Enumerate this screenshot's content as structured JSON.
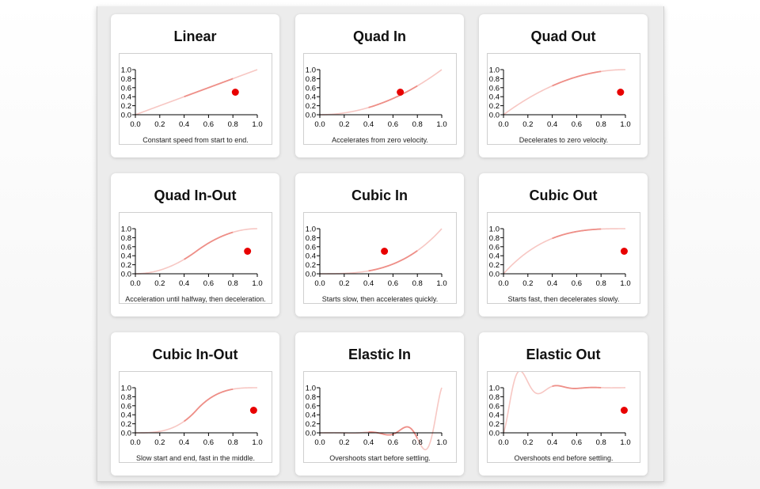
{
  "cards": [
    {
      "title": "Linear",
      "desc": "Constant speed from start to end.",
      "easing": "linear",
      "dot_t": 0.82
    },
    {
      "title": "Quad In",
      "desc": "Accelerates from zero velocity.",
      "easing": "quadIn",
      "dot_t": 0.66
    },
    {
      "title": "Quad Out",
      "desc": "Decelerates to zero velocity.",
      "easing": "quadOut",
      "dot_t": 0.96
    },
    {
      "title": "Quad In-Out",
      "desc": "Acceleration until halfway, then deceleration.",
      "easing": "quadInOut",
      "dot_t": 0.92
    },
    {
      "title": "Cubic In",
      "desc": "Starts slow, then accelerates quickly.",
      "easing": "cubicIn",
      "dot_t": 0.53
    },
    {
      "title": "Cubic Out",
      "desc": "Starts fast, then decelerates slowly.",
      "easing": "cubicOut",
      "dot_t": 0.99
    },
    {
      "title": "Cubic In-Out",
      "desc": "Slow start and end, fast in the middle.",
      "easing": "cubicInOut",
      "dot_t": 0.97
    },
    {
      "title": "Elastic In",
      "desc": "Overshoots start before settling.",
      "easing": "elasticIn",
      "dot_t": null
    },
    {
      "title": "Elastic Out",
      "desc": "Overshoots end before settling.",
      "easing": "elasticOut",
      "dot_t": 0.99
    }
  ],
  "axis": {
    "x_ticks": [
      "0.0",
      "0.2",
      "0.4",
      "0.6",
      "0.8",
      "1.0"
    ],
    "y_ticks": [
      "0.0",
      "0.2",
      "0.4",
      "0.6",
      "0.8",
      "1.0"
    ],
    "xlim": [
      0,
      1
    ],
    "ylim": [
      0,
      1
    ]
  },
  "highlight_range": [
    0.4,
    0.8
  ],
  "dot_value": 0.5,
  "colors": {
    "curve": "#f7c7c3",
    "highlight": "#ee8f88",
    "dot": "#e80000"
  }
}
